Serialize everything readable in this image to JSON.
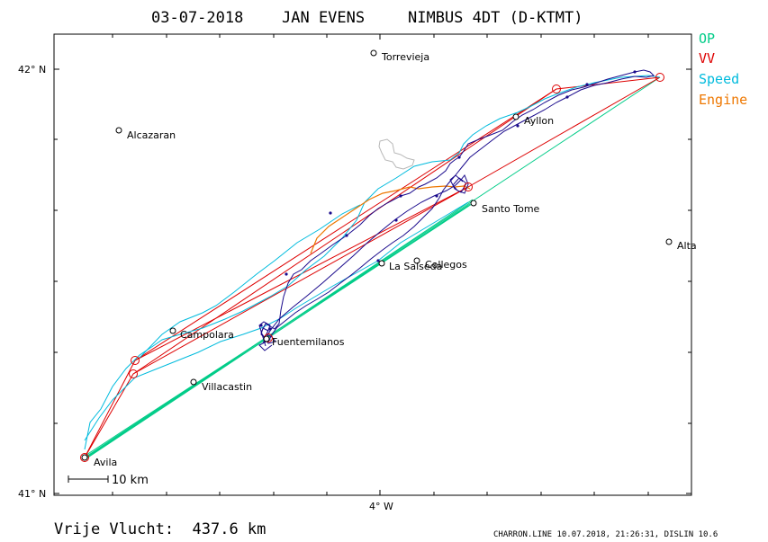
{
  "title": {
    "date": "03-07-2018",
    "pilot": "JAN EVENS",
    "glider": "NIMBUS 4DT (D-KTMT)"
  },
  "legend": [
    {
      "label": "OP",
      "color": "#00cc88"
    },
    {
      "label": "VV",
      "color": "#dd0000"
    },
    {
      "label": "Speed",
      "color": "#00bbdd"
    },
    {
      "label": "Engine",
      "color": "#ee7700"
    }
  ],
  "axes": {
    "lat_top": "42° N",
    "lat_bottom": "41° N",
    "lon_bottom": "4° W"
  },
  "scale_label": "10 km",
  "places": [
    {
      "name": "Torrevieja"
    },
    {
      "name": "Alcazaran"
    },
    {
      "name": "Ayllon"
    },
    {
      "name": "Santo Tome"
    },
    {
      "name": "Alta"
    },
    {
      "name": "Collegos"
    },
    {
      "name": "La Salseda"
    },
    {
      "name": "Campolara"
    },
    {
      "name": "Fuentemilanos"
    },
    {
      "name": "Villacastin"
    },
    {
      "name": "Avila"
    }
  ],
  "footer": {
    "distance": "Vrije Vlucht:  437.6 km",
    "credit": "CHARRON.LINE 10.07.2018, 21:26:31, DISLIN 10.6"
  },
  "colors": {
    "track": "#1a0a8c",
    "op": "#00cc88",
    "vv": "#dd0000",
    "speed": "#00bbdd",
    "engine": "#ee7700"
  }
}
